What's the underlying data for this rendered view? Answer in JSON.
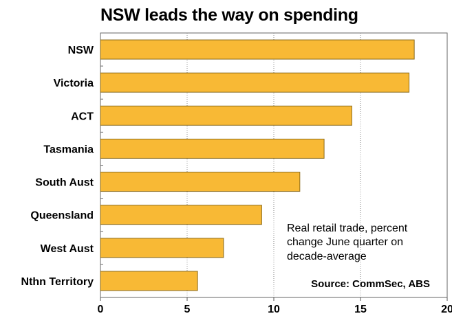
{
  "chart_data": {
    "type": "bar",
    "orientation": "horizontal",
    "title": "NSW leads the way on spending",
    "categories": [
      "NSW",
      "Victoria",
      "ACT",
      "Tasmania",
      "South Aust",
      "Queensland",
      "West Aust",
      "Nthn Territory"
    ],
    "values": [
      18.1,
      17.8,
      14.5,
      12.9,
      11.5,
      9.3,
      7.1,
      5.6
    ],
    "xlim": [
      0,
      20
    ],
    "xticks": [
      "0",
      "5",
      "10",
      "15",
      "20"
    ],
    "grid": "vertical dotted",
    "annotation": [
      "Real retail trade, percent",
      "change June quarter on",
      "decade-average"
    ],
    "source": "Source: CommSec, ABS",
    "bar_color": "#f8b935",
    "bar_edge_color": "#8a6a1a"
  }
}
